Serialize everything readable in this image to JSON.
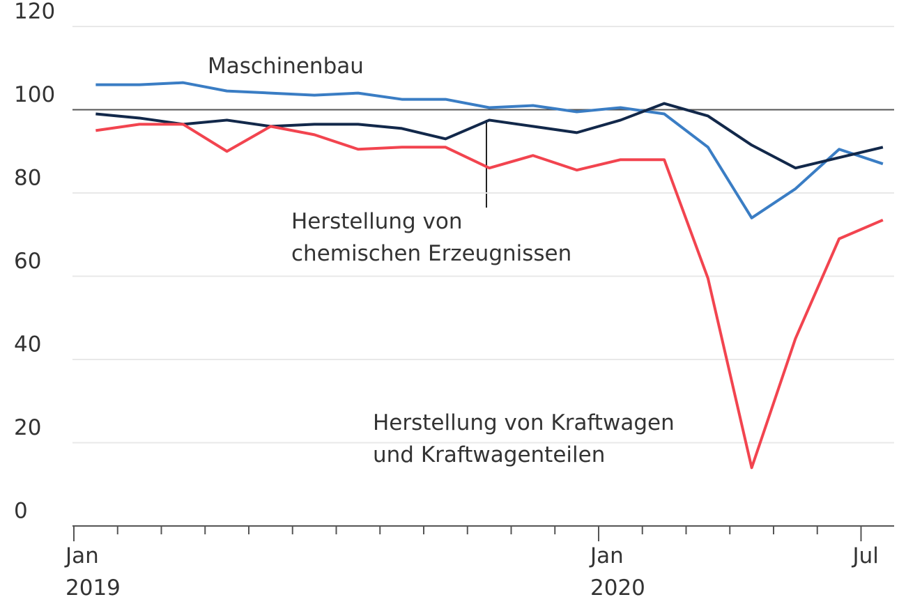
{
  "chart_data": {
    "type": "line",
    "categories": [
      "Jan\n2019",
      null,
      null,
      null,
      null,
      null,
      null,
      null,
      null,
      null,
      null,
      null,
      "Jan\n2020",
      null,
      null,
      null,
      null,
      null,
      "Jul"
    ],
    "series": [
      {
        "name": "Maschinenbau",
        "color": "#3a7dc4",
        "values": [
          106,
          106,
          106.5,
          104.5,
          104,
          103.5,
          104,
          102.5,
          102.5,
          100.5,
          101,
          99.5,
          100.5,
          99,
          91,
          74,
          81,
          90.5,
          87
        ]
      },
      {
        "name": "Herstellung von\nchemischen Erzeugnissen",
        "color": "#12284a",
        "values": [
          99,
          98,
          96.5,
          97.5,
          96,
          96.5,
          96.5,
          95.5,
          93,
          97.5,
          96,
          94.5,
          97.5,
          101.5,
          98.5,
          91.5,
          86,
          88.5,
          91
        ]
      },
      {
        "name": "Herstellung von Kraftwagen\nund Kraftwagenteilen",
        "color": "#f2444f",
        "values": [
          95,
          96.5,
          96.5,
          90,
          96,
          94,
          90.5,
          91,
          91,
          86,
          89,
          85.5,
          88,
          88,
          59.5,
          14,
          45,
          69,
          73.5
        ]
      }
    ],
    "ylim": [
      0,
      120
    ],
    "yticks": [
      0,
      20,
      40,
      60,
      80,
      100,
      120
    ],
    "grid": true,
    "reference_line": 100
  }
}
